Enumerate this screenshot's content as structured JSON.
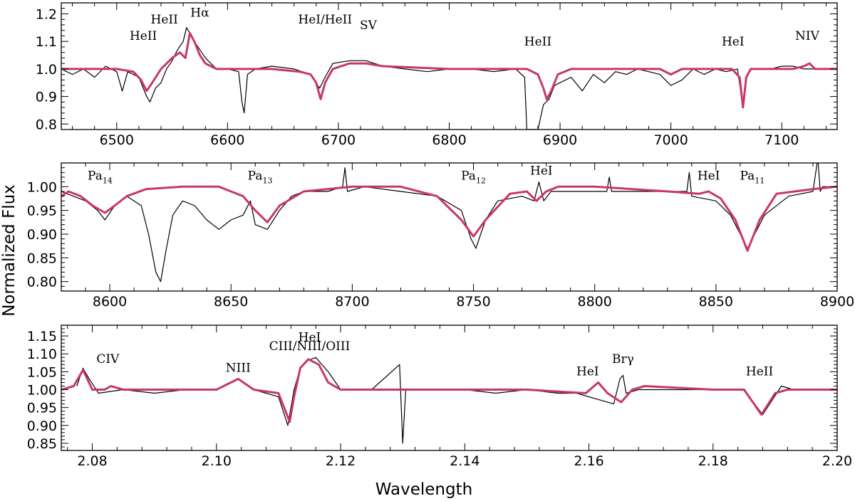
{
  "ylabel": "Normalized Flux",
  "xlabel": "Wavelength",
  "colors": {
    "observed": "#000000",
    "model": "#c8366a",
    "axes": "#000000"
  },
  "chart_data": [
    {
      "type": "line",
      "xlim": [
        6450,
        7150
      ],
      "ylim": [
        0.78,
        1.24
      ],
      "xticks": [
        6500,
        6600,
        6700,
        6800,
        6900,
        7000,
        7100
      ],
      "xticklabels": [
        "6500",
        "6600",
        "6700",
        "6800",
        "6900",
        "7000",
        "7100"
      ],
      "yticks": [
        0.8,
        0.9,
        1.0,
        1.1,
        1.2
      ],
      "yticklabels": [
        "0.8",
        "0.9",
        "1.0",
        "1.1",
        "1.2"
      ],
      "series": [
        {
          "x": [
            6450,
            6460,
            6470,
            6480,
            6490,
            6500,
            6505,
            6510,
            6520,
            6527,
            6530,
            6535,
            6540,
            6545,
            6550,
            6555,
            6560,
            6563,
            6566,
            6570,
            6575,
            6580,
            6590,
            6600,
            6610,
            6613,
            6615,
            6618,
            6625,
            6640,
            6660,
            6675,
            6683,
            6688,
            6695,
            6710,
            6725,
            6740,
            6760,
            6780,
            6800,
            6820,
            6840,
            6860,
            6868,
            6870,
            6875,
            6880,
            6885,
            6890,
            6895,
            6900,
            6910,
            6920,
            6930,
            6940,
            6950,
            6960,
            6970,
            6980,
            6990,
            7000,
            7010,
            7020,
            7030,
            7040,
            7050,
            7060,
            7065,
            7068,
            7072,
            7080,
            7090,
            7100,
            7110,
            7120,
            7130,
            7140,
            7150
          ],
          "y": [
            1.0,
            0.98,
            1.0,
            0.97,
            1.01,
            0.99,
            0.92,
            0.99,
            0.97,
            0.9,
            0.88,
            0.93,
            0.95,
            1.0,
            1.03,
            1.07,
            1.1,
            1.15,
            1.13,
            1.1,
            1.07,
            1.04,
            1.0,
            1.0,
            0.99,
            0.88,
            0.84,
            0.98,
            1.0,
            1.01,
            1.0,
            0.98,
            0.93,
            0.97,
            1.02,
            1.03,
            1.03,
            1.01,
            1.0,
            0.99,
            1.0,
            1.0,
            0.99,
            1.0,
            0.97,
            0.78,
            0.78,
            0.78,
            0.87,
            0.89,
            0.94,
            0.95,
            0.97,
            0.92,
            0.98,
            0.95,
            0.99,
            0.98,
            1.0,
            0.99,
            0.98,
            0.94,
            0.96,
            1.0,
            0.98,
            1.0,
            0.99,
            1.0,
            0.86,
            0.97,
            1.0,
            1.0,
            1.0,
            1.01,
            1.01,
            1.0,
            1.0,
            1.0,
            1.0
          ]
        },
        {
          "x": [
            6450,
            6500,
            6515,
            6522,
            6527,
            6532,
            6540,
            6550,
            6557,
            6562,
            6566,
            6570,
            6575,
            6580,
            6590,
            6600,
            6640,
            6665,
            6675,
            6680,
            6684,
            6688,
            6695,
            6710,
            6725,
            6740,
            6800,
            6870,
            6880,
            6885,
            6888,
            6892,
            6898,
            6910,
            6990,
            7000,
            7010,
            7055,
            7062,
            7065,
            7068,
            7072,
            7080,
            7110,
            7120,
            7125,
            7130,
            7150
          ],
          "y": [
            1.0,
            1.0,
            0.99,
            0.96,
            0.92,
            0.95,
            1.0,
            1.04,
            1.06,
            1.04,
            1.13,
            1.1,
            1.05,
            1.02,
            1.0,
            1.0,
            1.0,
            0.99,
            0.98,
            0.95,
            0.89,
            0.95,
            1.0,
            1.02,
            1.02,
            1.01,
            1.0,
            1.0,
            0.98,
            0.93,
            0.89,
            0.92,
            0.98,
            1.0,
            1.0,
            0.98,
            1.0,
            1.0,
            0.97,
            0.86,
            0.97,
            1.0,
            1.0,
            1.0,
            1.01,
            1.02,
            1.0,
            1.0
          ]
        }
      ],
      "annotations": [
        {
          "text": "HeII",
          "x": 6524,
          "y": 1.105
        },
        {
          "text": "HeII",
          "x": 6543,
          "y": 1.165
        },
        {
          "text": "Hα",
          "x": 6575,
          "y": 1.19
        },
        {
          "text": "HeI/HeII",
          "x": 6688,
          "y": 1.165
        },
        {
          "text": "SV",
          "x": 6727,
          "y": 1.145
        },
        {
          "text": "HeII",
          "x": 6880,
          "y": 1.085
        },
        {
          "text": "HeI",
          "x": 7056,
          "y": 1.085
        },
        {
          "text": "NIV",
          "x": 7123,
          "y": 1.105
        }
      ]
    },
    {
      "type": "line",
      "xlim": [
        8580,
        8900
      ],
      "ylim": [
        0.78,
        1.05
      ],
      "xticks": [
        8600,
        8650,
        8700,
        8750,
        8800,
        8850,
        8900
      ],
      "xticklabels": [
        "8600",
        "8650",
        "8700",
        "8750",
        "8800",
        "8850",
        "8900"
      ],
      "yticks": [
        0.8,
        0.85,
        0.9,
        0.95,
        1.0
      ],
      "yticklabels": [
        "0.80",
        "0.85",
        "0.90",
        "0.95",
        "1.00"
      ],
      "series": [
        {
          "x": [
            8580,
            8585,
            8590,
            8595,
            8598,
            8602,
            8607,
            8613,
            8616,
            8619,
            8621,
            8623,
            8626,
            8630,
            8635,
            8640,
            8645,
            8650,
            8655,
            8658,
            8660,
            8665,
            8670,
            8675,
            8680,
            8690,
            8696,
            8697,
            8698,
            8705,
            8720,
            8735,
            8745,
            8749,
            8751,
            8755,
            8760,
            8770,
            8775,
            8777,
            8779,
            8782,
            8790,
            8800,
            8805,
            8806,
            8807,
            8815,
            8830,
            8838,
            8839,
            8840,
            8850,
            8856,
            8860,
            8863,
            8866,
            8870,
            8880,
            8890,
            8892,
            8893,
            8894,
            8900
          ],
          "y": [
            0.99,
            0.98,
            0.97,
            0.95,
            0.93,
            0.96,
            0.98,
            0.96,
            0.9,
            0.82,
            0.8,
            0.86,
            0.94,
            0.97,
            0.96,
            0.93,
            0.91,
            0.93,
            0.94,
            0.97,
            0.92,
            0.91,
            0.95,
            0.98,
            0.99,
            0.99,
            1.0,
            1.04,
            0.99,
            1.0,
            0.99,
            0.98,
            0.95,
            0.89,
            0.87,
            0.93,
            0.97,
            0.98,
            0.97,
            1.01,
            0.97,
            0.99,
            0.99,
            0.99,
            0.99,
            1.02,
            0.99,
            0.99,
            0.99,
            0.99,
            1.03,
            0.98,
            0.97,
            0.94,
            0.9,
            0.87,
            0.9,
            0.94,
            0.98,
            0.99,
            1.06,
            0.99,
            1.0,
            1.0
          ]
        },
        {
          "x": [
            8580,
            8583,
            8588,
            8593,
            8598,
            8602,
            8607,
            8615,
            8630,
            8645,
            8650,
            8655,
            8660,
            8665,
            8670,
            8680,
            8700,
            8720,
            8735,
            8745,
            8750,
            8755,
            8765,
            8772,
            8776,
            8780,
            8785,
            8800,
            8830,
            8843,
            8847,
            8852,
            8858,
            8863,
            8868,
            8875,
            8890,
            8900
          ],
          "y": [
            0.98,
            0.99,
            0.98,
            0.96,
            0.945,
            0.96,
            0.98,
            0.995,
            1.0,
            1.0,
            0.99,
            0.98,
            0.95,
            0.925,
            0.96,
            0.99,
            1.0,
            1.0,
            0.98,
            0.93,
            0.895,
            0.93,
            0.985,
            0.99,
            0.97,
            0.99,
            1.0,
            1.0,
            0.99,
            0.985,
            0.99,
            0.975,
            0.93,
            0.865,
            0.93,
            0.985,
            0.995,
            1.0
          ]
        }
      ],
      "annotations": [
        {
          "text": "Pa",
          "sub": "14",
          "x": 8596,
          "y": 1.015
        },
        {
          "text": "Pa",
          "sub": "13",
          "x": 8662,
          "y": 1.015
        },
        {
          "text": "Pa",
          "sub": "12",
          "x": 8750,
          "y": 1.015
        },
        {
          "text": "HeI",
          "x": 8778,
          "y": 1.025
        },
        {
          "text": "HeI",
          "x": 8847,
          "y": 1.015
        },
        {
          "text": "Pa",
          "sub": "11",
          "x": 8865,
          "y": 1.015
        }
      ]
    },
    {
      "type": "line",
      "xlim": [
        2.075,
        2.2
      ],
      "ylim": [
        0.83,
        1.18
      ],
      "xticks": [
        2.08,
        2.1,
        2.12,
        2.14,
        2.16,
        2.18,
        2.2
      ],
      "xticklabels": [
        "2.08",
        "2.10",
        "2.12",
        "2.14",
        "2.16",
        "2.18",
        "2.20"
      ],
      "yticks": [
        0.85,
        0.9,
        0.95,
        1.0,
        1.05,
        1.1,
        1.15
      ],
      "yticklabels": [
        "0.85",
        "0.90",
        "0.95",
        "1.00",
        "1.05",
        "1.10",
        "1.15"
      ],
      "series": [
        {
          "x": [
            2.0775,
            2.0785,
            2.0795,
            2.081,
            2.085,
            2.09,
            2.095,
            2.1,
            2.1035,
            2.106,
            2.11,
            2.1115,
            2.1125,
            2.1135,
            2.1145,
            2.116,
            2.118,
            2.12,
            2.125,
            2.1295,
            2.13,
            2.1305,
            2.135,
            2.14,
            2.145,
            2.15,
            2.155,
            2.158,
            2.16,
            2.162,
            2.164,
            2.165,
            2.1655,
            2.166,
            2.168,
            2.17,
            2.175,
            2.18,
            2.185,
            2.188,
            2.191,
            2.193,
            2.195
          ],
          "y": [
            1.01,
            1.06,
            1.03,
            0.99,
            1.0,
            0.99,
            1.0,
            1.0,
            1.03,
            1.0,
            0.98,
            0.9,
            1.0,
            1.06,
            1.08,
            1.09,
            1.05,
            1.0,
            1.0,
            1.07,
            0.85,
            1.0,
            1.0,
            1.0,
            0.99,
            1.0,
            0.99,
            0.99,
            0.98,
            0.97,
            0.96,
            1.03,
            1.04,
            0.99,
            1.0,
            1.0,
            1.0,
            1.0,
            1.0,
            0.93,
            1.01,
            1.0,
            1.0
          ]
        },
        {
          "x": [
            2.075,
            2.077,
            2.0785,
            2.08,
            2.082,
            2.083,
            2.085,
            2.1,
            2.1035,
            2.106,
            2.11,
            2.1118,
            2.1125,
            2.1135,
            2.1148,
            2.1165,
            2.118,
            2.12,
            2.15,
            2.1595,
            2.1615,
            2.163,
            2.1652,
            2.167,
            2.169,
            2.18,
            2.185,
            2.1878,
            2.19,
            2.192,
            2.2
          ],
          "y": [
            1.0,
            1.01,
            1.055,
            1.0,
            1.0,
            1.01,
            1.0,
            1.0,
            1.03,
            1.0,
            0.99,
            0.91,
            0.98,
            1.06,
            1.085,
            1.07,
            1.02,
            1.0,
            1.0,
            0.99,
            1.02,
            0.99,
            0.965,
            1.0,
            1.01,
            1.0,
            1.0,
            0.93,
            0.99,
            1.0,
            1.0
          ]
        }
      ],
      "annotations": [
        {
          "text": "CIV",
          "x": 2.0825,
          "y": 1.075
        },
        {
          "text": "NIII",
          "x": 2.1035,
          "y": 1.05
        },
        {
          "text": "HeI",
          "x": 2.115,
          "y": 1.135
        },
        {
          "text": "CIII/NIII/OIII",
          "x": 2.115,
          "y": 1.11
        },
        {
          "text": "HeI",
          "x": 2.1598,
          "y": 1.04
        },
        {
          "text": "Brγ",
          "x": 2.1655,
          "y": 1.075
        },
        {
          "text": "HeII",
          "x": 2.1875,
          "y": 1.04
        }
      ]
    }
  ]
}
